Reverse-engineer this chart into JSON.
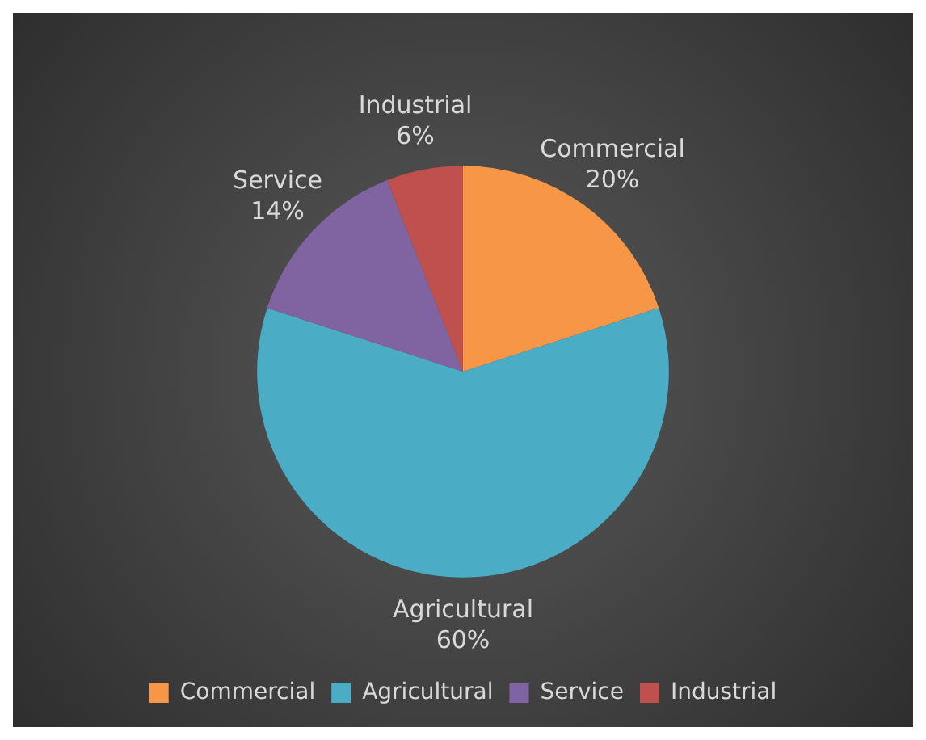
{
  "chart_data": {
    "type": "pie",
    "categories": [
      "Commercial",
      "Agricultural",
      "Service",
      "Industrial"
    ],
    "values": [
      20,
      60,
      14,
      6
    ],
    "colors": [
      "#f79646",
      "#4bacc6",
      "#8064a2",
      "#c0504d"
    ],
    "value_labels": [
      "20%",
      "60%",
      "14%",
      "6%"
    ],
    "legend": "bottom"
  }
}
